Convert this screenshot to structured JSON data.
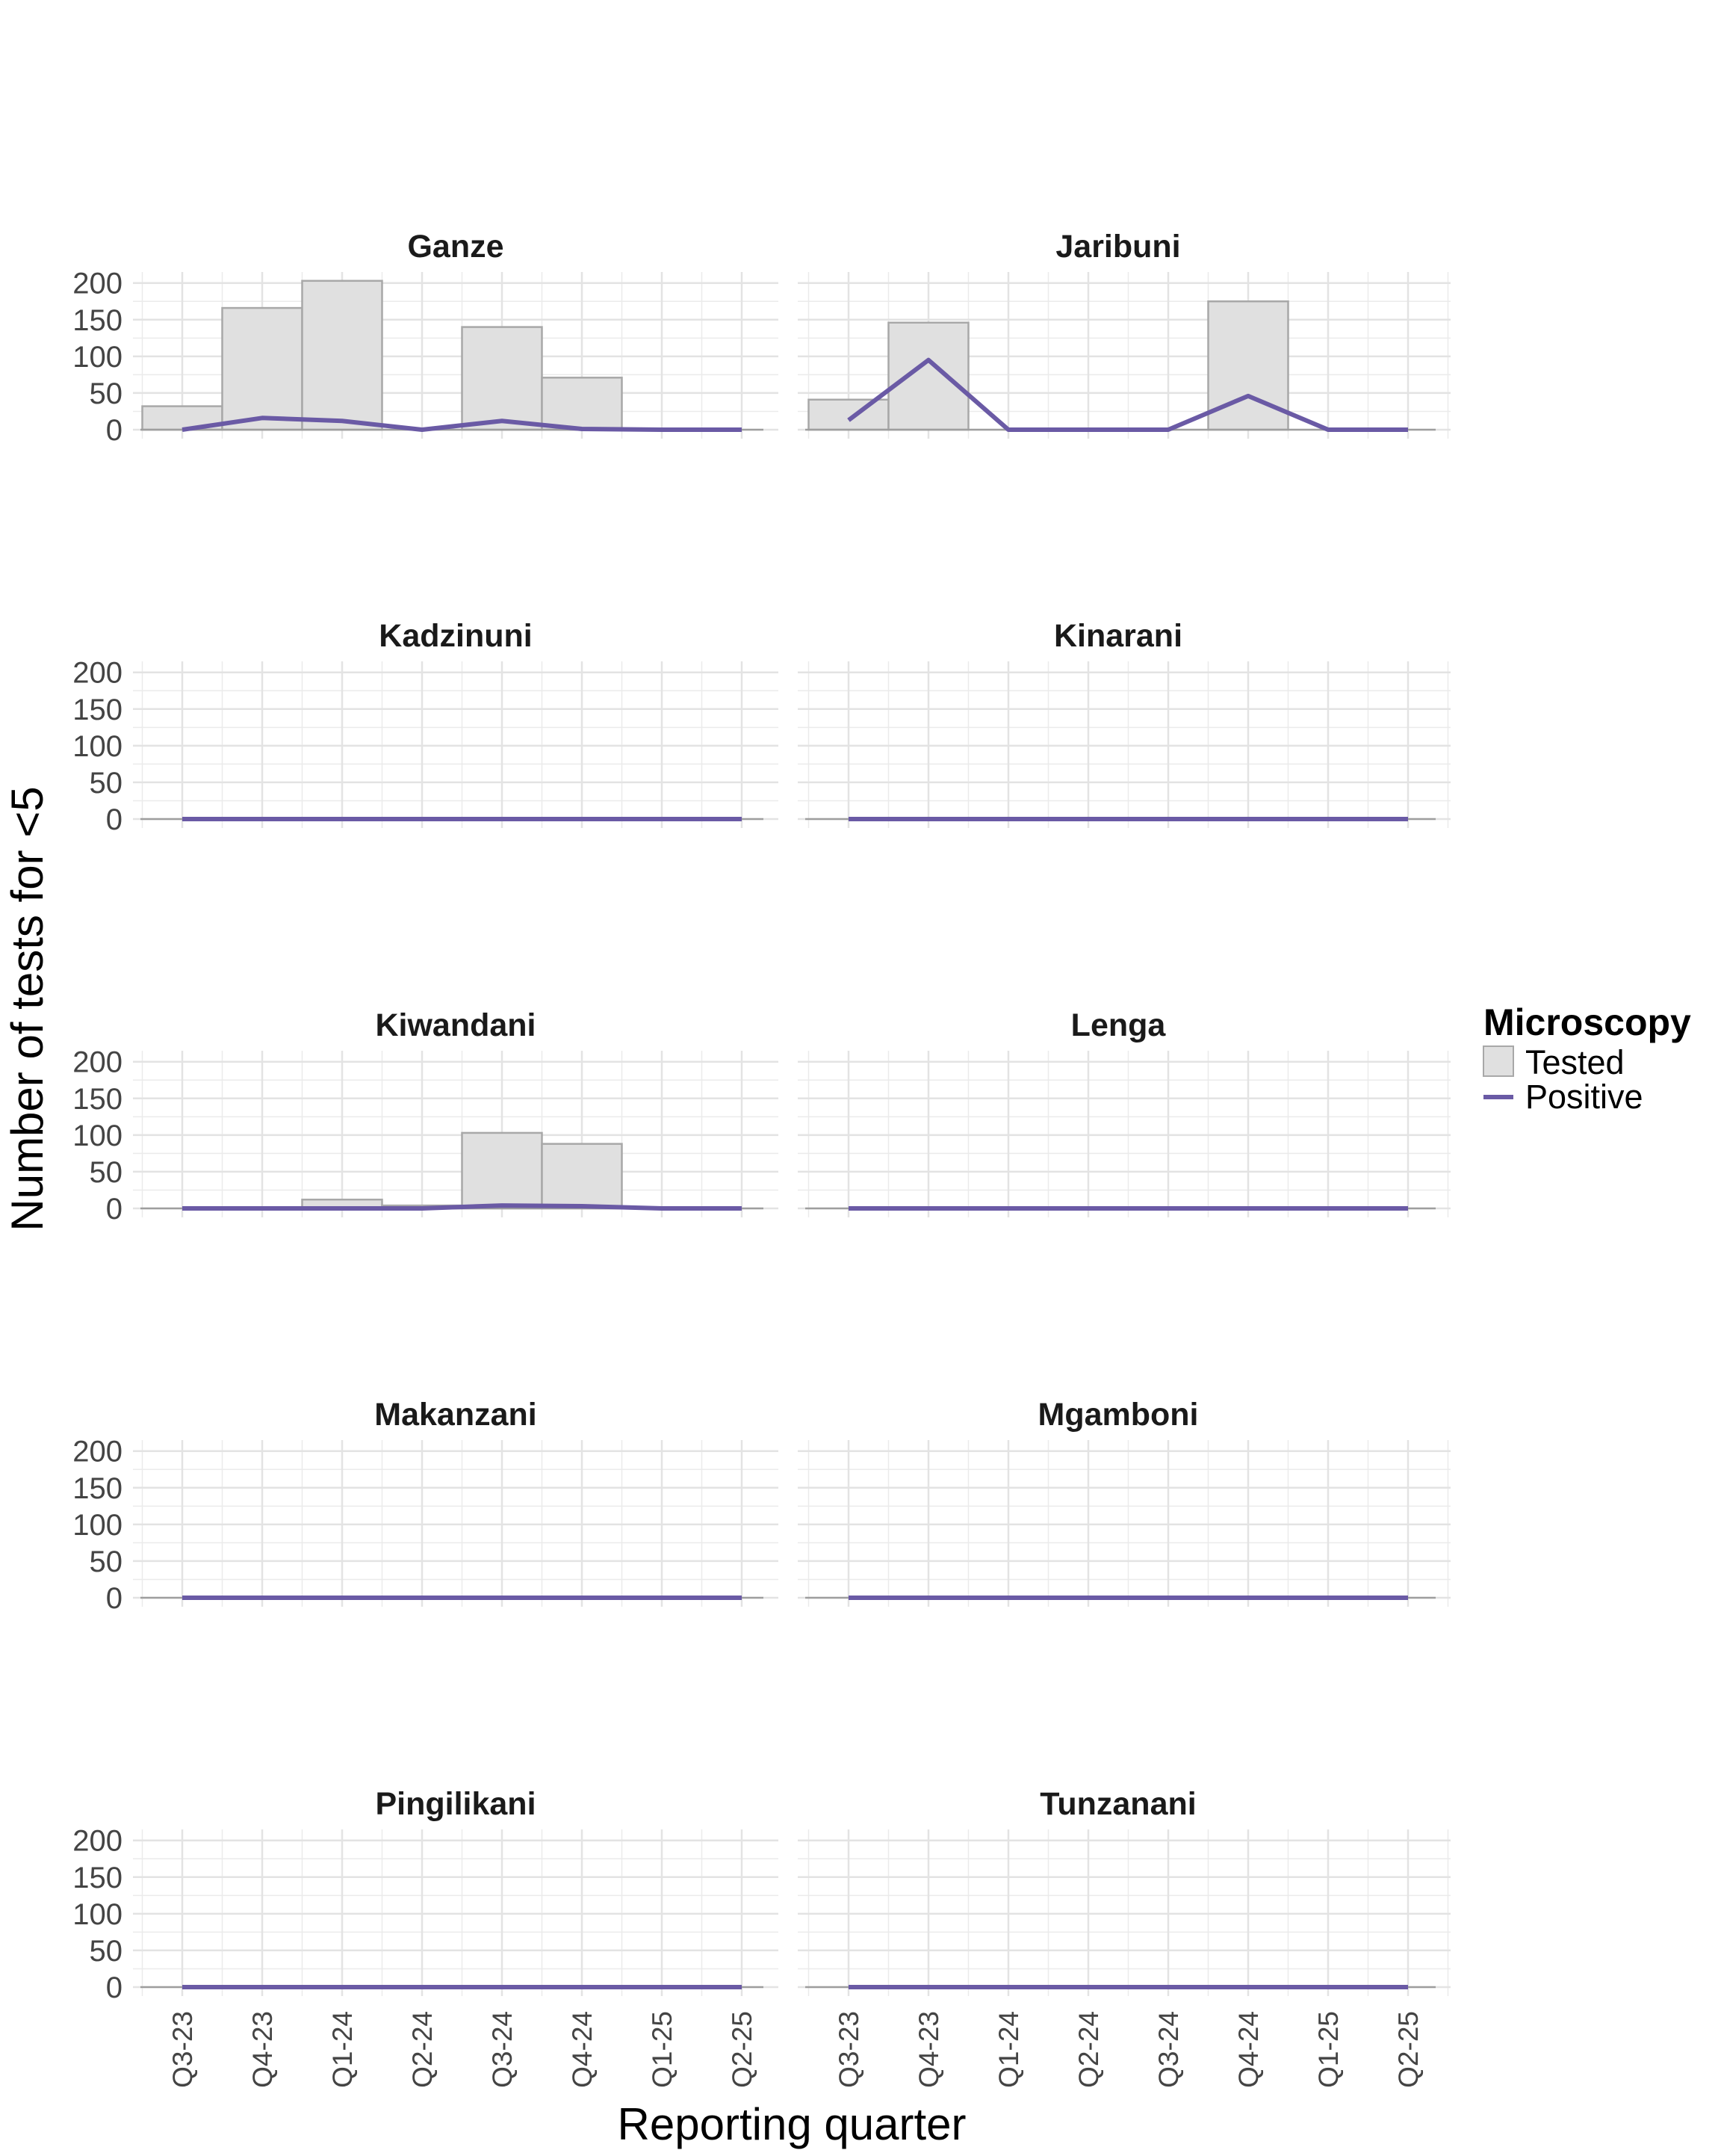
{
  "chart_data": {
    "type": "bar",
    "facet_layout": "5 rows x 2 columns",
    "xlabel": "Reporting quarter",
    "ylabel": "Number of tests for <5",
    "categories": [
      "Q3-23",
      "Q4-23",
      "Q1-24",
      "Q2-24",
      "Q3-24",
      "Q4-24",
      "Q1-25",
      "Q2-25"
    ],
    "yticks": [
      0,
      50,
      100,
      150,
      200
    ],
    "ylim": [
      0,
      215
    ],
    "grid": true,
    "legend": {
      "title": "Microscopy",
      "position": "right",
      "items": [
        {
          "label": "Tested",
          "kind": "bar",
          "fill": "#e0e0e0",
          "stroke": "#a8a8a8"
        },
        {
          "label": "Positive",
          "kind": "line",
          "color": "#6a5aa5"
        }
      ]
    },
    "colors": {
      "tested_fill": "#e0e0e0",
      "tested_stroke": "#a8a8a8",
      "positive_line": "#6a5aa5",
      "grid": "#ebebeb"
    },
    "panels": [
      {
        "name": "Ganze",
        "tested": [
          32,
          166,
          203,
          0,
          140,
          71,
          0,
          0
        ],
        "positive": [
          0,
          16,
          12,
          0,
          12,
          1,
          0,
          0
        ]
      },
      {
        "name": "Jaribuni",
        "tested": [
          41,
          146,
          0,
          0,
          0,
          175,
          0,
          0
        ],
        "positive": [
          13,
          95,
          0,
          0,
          0,
          46,
          0,
          0
        ]
      },
      {
        "name": "Kadzinuni",
        "tested": [
          0,
          0,
          0,
          0,
          0,
          0,
          0,
          0
        ],
        "positive": [
          0,
          0,
          0,
          0,
          0,
          0,
          0,
          0
        ]
      },
      {
        "name": "Kinarani",
        "tested": [
          0,
          0,
          0,
          0,
          0,
          0,
          0,
          0
        ],
        "positive": [
          0,
          0,
          0,
          0,
          0,
          0,
          0,
          0
        ]
      },
      {
        "name": "Kiwandani",
        "tested": [
          0,
          0,
          12,
          4,
          103,
          88,
          0,
          0
        ],
        "positive": [
          0,
          0,
          0,
          0,
          4,
          3,
          0,
          0
        ]
      },
      {
        "name": "Lenga",
        "tested": [
          0,
          0,
          0,
          0,
          0,
          0,
          0,
          0
        ],
        "positive": [
          0,
          0,
          0,
          0,
          0,
          0,
          0,
          0
        ]
      },
      {
        "name": "Makanzani",
        "tested": [
          0,
          0,
          0,
          0,
          0,
          0,
          0,
          0
        ],
        "positive": [
          0,
          0,
          0,
          0,
          0,
          0,
          0,
          0
        ]
      },
      {
        "name": "Mgamboni",
        "tested": [
          0,
          0,
          0,
          0,
          0,
          0,
          0,
          0
        ],
        "positive": [
          0,
          0,
          0,
          0,
          0,
          0,
          0,
          0
        ]
      },
      {
        "name": "Pingilikani",
        "tested": [
          0,
          0,
          0,
          0,
          0,
          0,
          0,
          0
        ],
        "positive": [
          0,
          0,
          0,
          0,
          0,
          0,
          0,
          0
        ]
      },
      {
        "name": "Tunzanani",
        "tested": [
          0,
          0,
          0,
          0,
          0,
          0,
          0,
          0
        ],
        "positive": [
          0,
          0,
          0,
          0,
          0,
          0,
          0,
          0
        ]
      }
    ]
  }
}
